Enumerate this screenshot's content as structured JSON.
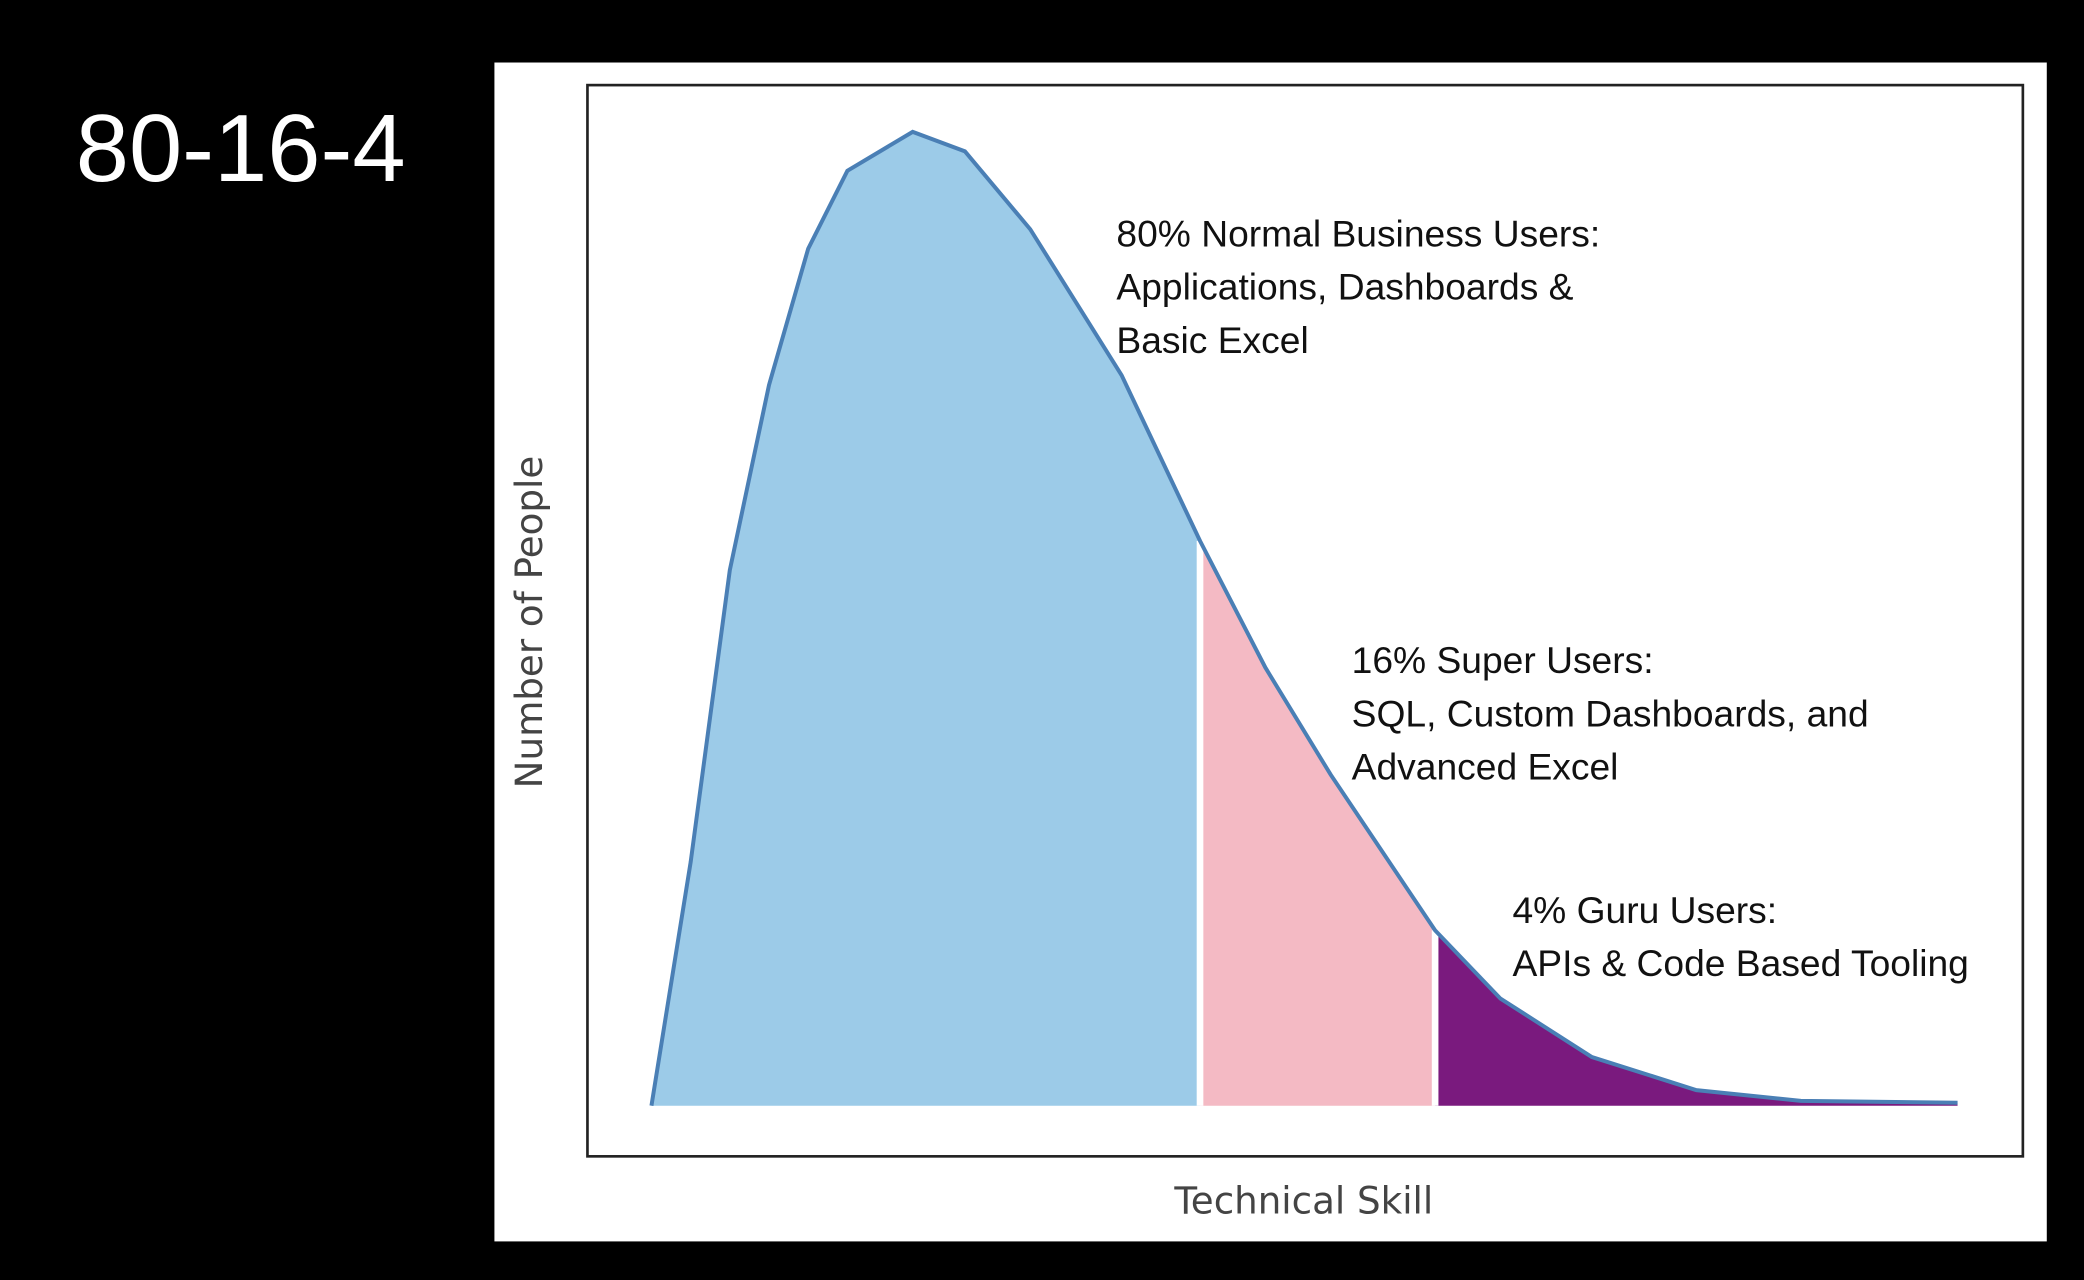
{
  "chart_data": {
    "type": "area",
    "title": "80-16-4",
    "xlabel": "Technical Skill",
    "ylabel": "Number of People",
    "x": [
      0,
      0.3,
      0.6,
      0.9,
      1.2,
      1.5,
      2.0,
      2.4,
      2.9,
      3.6,
      4.2,
      4.7,
      5.2,
      5.6,
      6.0,
      6.5,
      7.2,
      8.0,
      8.8,
      10.0
    ],
    "values": [
      0,
      25,
      55,
      74,
      88,
      96,
      100,
      98,
      90,
      75,
      58,
      45,
      34,
      26,
      18,
      11,
      5,
      1.6,
      0.5,
      0.3
    ],
    "color": "#4a7fb5",
    "xlim": [
      -0.49,
      10.5
    ],
    "ylim": [
      -5.2,
      104.8
    ],
    "regions": [
      {
        "from": 0,
        "to": 4.2,
        "color": "#9ccbe8"
      },
      {
        "from": 4.2,
        "to": 6.0,
        "color": "#f4bac4"
      },
      {
        "from": 6.0,
        "to": 10.0,
        "color": "#7a1a7e"
      }
    ],
    "annotations": [
      {
        "lines": [
          "80% Normal Business Users:",
          "Applications, Dashboards &",
          "Basic Excel"
        ]
      },
      {
        "lines": [
          "16% Super Users:",
          "SQL, Custom Dashboards, and",
          "Advanced Excel"
        ]
      },
      {
        "lines": [
          "4% Guru Users:",
          "APIs & Code Based Tooling"
        ]
      }
    ]
  }
}
